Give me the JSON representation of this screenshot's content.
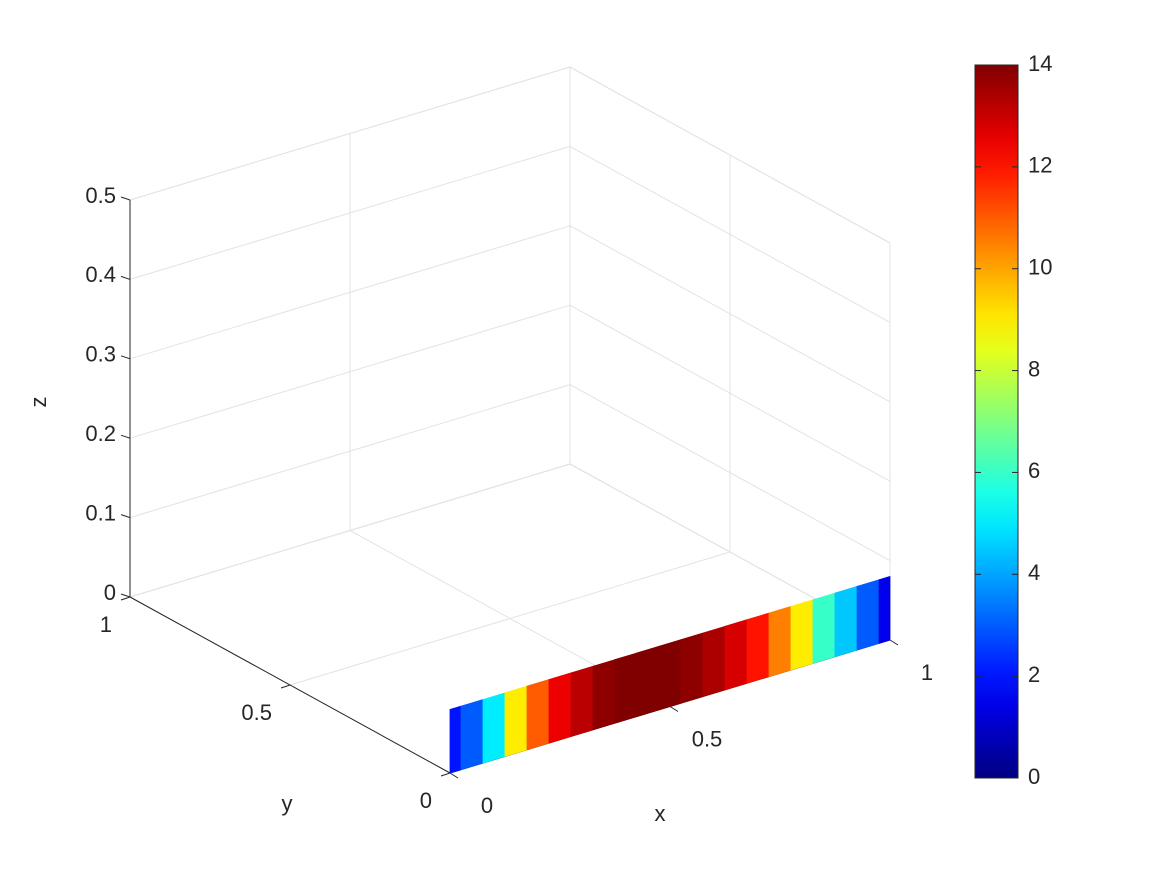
{
  "chart_data": {
    "type": "surface3d",
    "xlabel": "x",
    "ylabel": "y",
    "zlabel": "z",
    "xlim": [
      0,
      1
    ],
    "xticks": [
      0,
      0.5,
      1
    ],
    "ylim": [
      0,
      1
    ],
    "yticks": [
      0,
      0.5,
      1
    ],
    "zlim": [
      0,
      0.5
    ],
    "zticks": [
      0,
      0.1,
      0.2,
      0.3,
      0.4,
      0.5
    ],
    "grid": true,
    "colormap": "jet",
    "clim": [
      0,
      14
    ],
    "cticks": [
      0,
      2,
      4,
      6,
      8,
      10,
      12,
      14
    ],
    "strip_y": 0,
    "height": 0.08,
    "x": [
      0,
      0.05,
      0.1,
      0.15,
      0.2,
      0.25,
      0.3,
      0.35,
      0.4,
      0.45,
      0.5,
      0.55,
      0.6,
      0.65,
      0.7,
      0.75,
      0.8,
      0.85,
      0.9,
      0.95,
      1
    ],
    "values": [
      2,
      3,
      5,
      9,
      11,
      12.5,
      13.2,
      13.8,
      14,
      14,
      14,
      13.8,
      13.4,
      12.8,
      12,
      10.5,
      9,
      6,
      4.5,
      3,
      1.5
    ]
  }
}
